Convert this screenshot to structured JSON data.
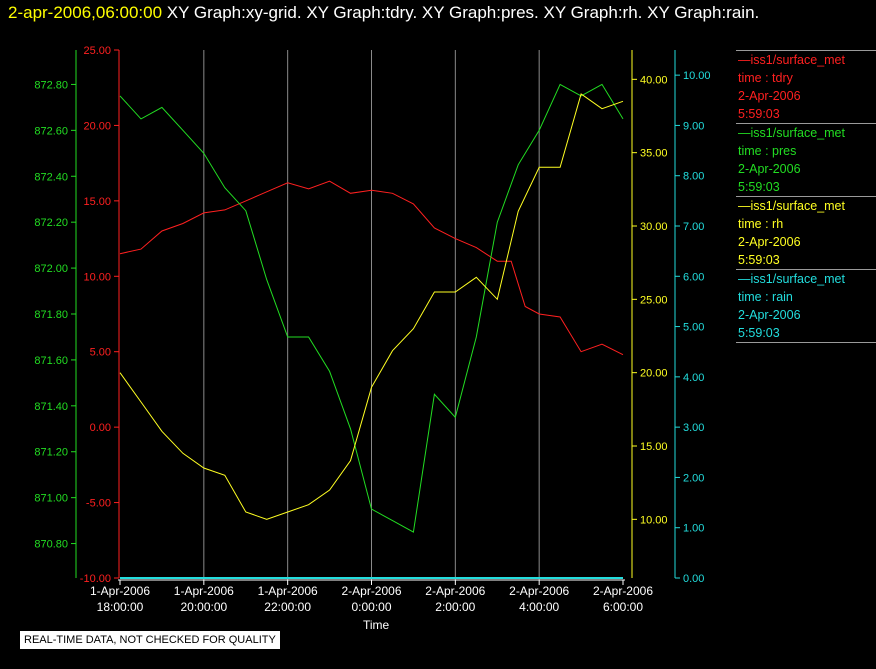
{
  "header": {
    "timestamp": "2-apr-2006,06:00:00",
    "graphs": "XY Graph:xy-grid.  XY Graph:tdry.  XY Graph:pres.  XY Graph:rh.  XY Graph:rain."
  },
  "footer": {
    "note": "REAL-TIME DATA, NOT CHECKED FOR QUALITY",
    "xlabel": "Time"
  },
  "legend": [
    {
      "name": "iss1/surface_met",
      "field": "time : tdry",
      "date": "2-Apr-2006",
      "time": "5:59:03",
      "color": "#ff2020"
    },
    {
      "name": "iss1/surface_met",
      "field": "time : pres",
      "date": "2-Apr-2006",
      "time": "5:59:03",
      "color": "#22dd22"
    },
    {
      "name": "iss1/surface_met",
      "field": "time : rh",
      "date": "2-Apr-2006",
      "time": "5:59:03",
      "color": "#ffff22"
    },
    {
      "name": "iss1/surface_met",
      "field": "time : rain",
      "date": "2-Apr-2006",
      "time": "5:59:03",
      "color": "#22dddd"
    }
  ],
  "chart_data": {
    "type": "line",
    "grid": true,
    "x_ticks": [
      {
        "date": "1-Apr-2006",
        "time": "18:00:00"
      },
      {
        "date": "1-Apr-2006",
        "time": "20:00:00"
      },
      {
        "date": "1-Apr-2006",
        "time": "22:00:00"
      },
      {
        "date": "2-Apr-2006",
        "time": "0:00:00"
      },
      {
        "date": "2-Apr-2006",
        "time": "2:00:00"
      },
      {
        "date": "2-Apr-2006",
        "time": "4:00:00"
      },
      {
        "date": "2-Apr-2006",
        "time": "6:00:00"
      }
    ],
    "axes": [
      {
        "id": "tdry",
        "color": "#ff2020",
        "ylim": [
          -10,
          25
        ],
        "ticks": [
          "25.00",
          "20.00",
          "15.00",
          "10.00",
          "5.00",
          "0.00",
          "-5.00",
          "-10.00"
        ]
      },
      {
        "id": "pres",
        "color": "#22dd22",
        "ylim": [
          870.65,
          872.95
        ],
        "ticks": [
          "872.80",
          "872.60",
          "872.40",
          "872.20",
          "872.00",
          "871.80",
          "871.60",
          "871.40",
          "871.20",
          "871.00",
          "870.80"
        ]
      },
      {
        "id": "rh",
        "color": "#ffff22",
        "ylim": [
          6,
          42
        ],
        "ticks": [
          "40.00",
          "35.00",
          "30.00",
          "25.00",
          "20.00",
          "15.00",
          "10.00"
        ]
      },
      {
        "id": "rain",
        "color": "#22dddd",
        "ylim": [
          0,
          10.5
        ],
        "ticks": [
          "10.00",
          "9.00",
          "8.00",
          "7.00",
          "6.00",
          "5.00",
          "4.00",
          "3.00",
          "2.00",
          "1.00",
          "0.00"
        ]
      }
    ],
    "series": [
      {
        "name": "tdry",
        "axis": "tdry",
        "color": "#ff2020",
        "x": [
          "1-Apr-2006 18:00",
          "1-Apr-2006 18:30",
          "1-Apr-2006 19:00",
          "1-Apr-2006 19:30",
          "1-Apr-2006 20:00",
          "1-Apr-2006 20:30",
          "1-Apr-2006 21:00",
          "1-Apr-2006 21:30",
          "1-Apr-2006 22:00",
          "1-Apr-2006 22:30",
          "1-Apr-2006 23:00",
          "1-Apr-2006 23:30",
          "2-Apr-2006 00:00",
          "2-Apr-2006 00:30",
          "2-Apr-2006 01:00",
          "2-Apr-2006 01:30",
          "2-Apr-2006 02:00",
          "2-Apr-2006 02:30",
          "2-Apr-2006 03:00",
          "2-Apr-2006 03:20",
          "2-Apr-2006 03:40",
          "2-Apr-2006 04:00",
          "2-Apr-2006 04:30",
          "2-Apr-2006 05:00",
          "2-Apr-2006 05:30",
          "2-Apr-2006 06:00"
        ],
        "y": [
          11.5,
          11.8,
          13.0,
          13.5,
          14.2,
          14.4,
          15.0,
          15.6,
          16.2,
          15.8,
          16.3,
          15.5,
          15.7,
          15.5,
          14.8,
          13.2,
          12.5,
          11.9,
          11.0,
          11.0,
          8.0,
          7.5,
          7.3,
          5.0,
          5.5,
          4.8
        ]
      },
      {
        "name": "pres",
        "axis": "pres",
        "color": "#22dd22",
        "x": [
          "1-Apr-2006 18:00",
          "1-Apr-2006 18:30",
          "1-Apr-2006 19:00",
          "1-Apr-2006 19:30",
          "1-Apr-2006 20:00",
          "1-Apr-2006 20:30",
          "1-Apr-2006 21:00",
          "1-Apr-2006 21:30",
          "1-Apr-2006 22:00",
          "1-Apr-2006 22:30",
          "1-Apr-2006 23:00",
          "1-Apr-2006 23:30",
          "2-Apr-2006 00:00",
          "2-Apr-2006 00:30",
          "2-Apr-2006 01:00",
          "2-Apr-2006 01:30",
          "2-Apr-2006 02:00",
          "2-Apr-2006 02:30",
          "2-Apr-2006 03:00",
          "2-Apr-2006 03:30",
          "2-Apr-2006 04:00",
          "2-Apr-2006 04:30",
          "2-Apr-2006 05:00",
          "2-Apr-2006 05:30",
          "2-Apr-2006 06:00"
        ],
        "y": [
          872.75,
          872.65,
          872.7,
          872.6,
          872.5,
          872.35,
          872.25,
          871.95,
          871.7,
          871.7,
          871.55,
          871.3,
          870.95,
          870.9,
          870.85,
          871.45,
          871.35,
          871.7,
          872.2,
          872.45,
          872.6,
          872.8,
          872.75,
          872.8,
          872.65
        ]
      },
      {
        "name": "rh",
        "axis": "rh",
        "color": "#ffff22",
        "x": [
          "1-Apr-2006 18:00",
          "1-Apr-2006 18:30",
          "1-Apr-2006 19:00",
          "1-Apr-2006 19:30",
          "1-Apr-2006 20:00",
          "1-Apr-2006 20:30",
          "1-Apr-2006 21:00",
          "1-Apr-2006 21:30",
          "1-Apr-2006 22:00",
          "1-Apr-2006 22:30",
          "1-Apr-2006 23:00",
          "1-Apr-2006 23:30",
          "2-Apr-2006 00:00",
          "2-Apr-2006 00:30",
          "2-Apr-2006 01:00",
          "2-Apr-2006 01:30",
          "2-Apr-2006 02:00",
          "2-Apr-2006 02:30",
          "2-Apr-2006 03:00",
          "2-Apr-2006 03:30",
          "2-Apr-2006 04:00",
          "2-Apr-2006 04:30",
          "2-Apr-2006 05:00",
          "2-Apr-2006 05:30",
          "2-Apr-2006 06:00"
        ],
        "y": [
          20.0,
          18.0,
          16.0,
          14.5,
          13.5,
          13.0,
          10.5,
          10.0,
          10.5,
          11.0,
          12.0,
          14.0,
          19.0,
          21.5,
          23.0,
          25.5,
          25.5,
          26.5,
          25.0,
          31.0,
          34.0,
          34.0,
          39.0,
          38.0,
          38.5
        ]
      },
      {
        "name": "rain",
        "axis": "rain",
        "color": "#22dddd",
        "x": [
          "1-Apr-2006 18:00",
          "2-Apr-2006 06:00"
        ],
        "y": [
          0.0,
          0.0
        ]
      }
    ]
  }
}
